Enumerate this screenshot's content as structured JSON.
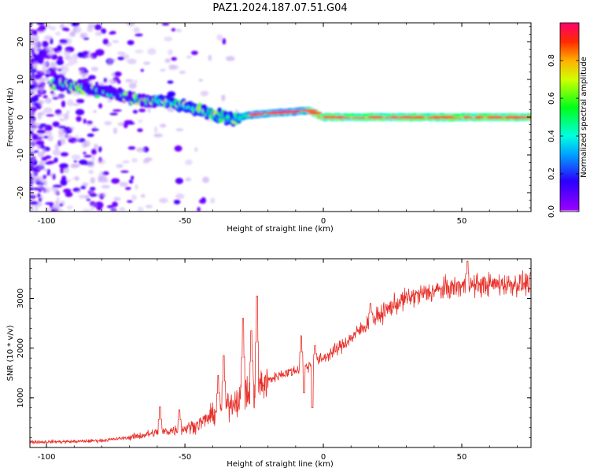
{
  "title": "PAZ1.2024.187.07.51.G04",
  "chart_data": [
    {
      "type": "heatmap",
      "xlabel": "Height of straight line (km)",
      "ylabel": "Frequency (Hz)",
      "xlim": [
        -106,
        75
      ],
      "ylim": [
        -25,
        25
      ],
      "xticks": [
        -100,
        -50,
        0,
        50
      ],
      "yticks": [
        -20,
        -10,
        0,
        10,
        20
      ],
      "colorbar": {
        "label": "Normalized spectral amplitude",
        "range": [
          0,
          1
        ],
        "ticks": [
          0.0,
          0.2,
          0.4,
          0.6,
          0.8
        ],
        "colormap": "gist_rainbow_r",
        "zero_color": "#ffffff"
      },
      "ridge": [
        {
          "x": -95,
          "y": 9
        },
        {
          "x": -85,
          "y": 7.5
        },
        {
          "x": -75,
          "y": 6
        },
        {
          "x": -65,
          "y": 4.5
        },
        {
          "x": -55,
          "y": 4
        },
        {
          "x": -48,
          "y": 2.5
        },
        {
          "x": -40,
          "y": 1
        },
        {
          "x": -33,
          "y": -1
        },
        {
          "x": -28,
          "y": 0.5
        },
        {
          "x": -20,
          "y": 1
        },
        {
          "x": -10,
          "y": 1.5
        },
        {
          "x": -5,
          "y": 1.8
        },
        {
          "x": 0,
          "y": 0
        },
        {
          "x": 10,
          "y": 0
        },
        {
          "x": 30,
          "y": 0
        },
        {
          "x": 50,
          "y": 0
        },
        {
          "x": 75,
          "y": 0
        }
      ]
    },
    {
      "type": "line",
      "xlabel": "Height of straight line (km)",
      "ylabel": "SNR (10 * v/v)",
      "xlim": [
        -106,
        75
      ],
      "ylim": [
        0,
        3800
      ],
      "xticks": [
        -100,
        -50,
        0,
        50
      ],
      "yticks": [
        1000,
        2000,
        3000
      ],
      "color": "#e8302a",
      "trend": [
        {
          "x": -106,
          "y": 110
        },
        {
          "x": -90,
          "y": 120
        },
        {
          "x": -80,
          "y": 140
        },
        {
          "x": -70,
          "y": 200
        },
        {
          "x": -60,
          "y": 300
        },
        {
          "x": -50,
          "y": 380
        },
        {
          "x": -45,
          "y": 470
        },
        {
          "x": -40,
          "y": 650
        },
        {
          "x": -35,
          "y": 850
        },
        {
          "x": -30,
          "y": 1000
        },
        {
          "x": -25,
          "y": 1150
        },
        {
          "x": -20,
          "y": 1350
        },
        {
          "x": -15,
          "y": 1480
        },
        {
          "x": -10,
          "y": 1550
        },
        {
          "x": -5,
          "y": 1650
        },
        {
          "x": 0,
          "y": 1800
        },
        {
          "x": 5,
          "y": 1980
        },
        {
          "x": 10,
          "y": 2200
        },
        {
          "x": 15,
          "y": 2450
        },
        {
          "x": 20,
          "y": 2650
        },
        {
          "x": 25,
          "y": 2850
        },
        {
          "x": 30,
          "y": 3000
        },
        {
          "x": 40,
          "y": 3150
        },
        {
          "x": 50,
          "y": 3250
        },
        {
          "x": 60,
          "y": 3280
        },
        {
          "x": 75,
          "y": 3300
        }
      ],
      "spikes": [
        {
          "x": -59,
          "y": 820
        },
        {
          "x": -52,
          "y": 760
        },
        {
          "x": -38,
          "y": 1450
        },
        {
          "x": -36,
          "y": 1850
        },
        {
          "x": -29,
          "y": 2600
        },
        {
          "x": -24,
          "y": 3050
        },
        {
          "x": -26,
          "y": 2350
        },
        {
          "x": -8,
          "y": 2250
        },
        {
          "x": -3,
          "y": 2050
        },
        {
          "x": 17,
          "y": 2900
        },
        {
          "x": 52,
          "y": 3750
        }
      ],
      "dips": [
        {
          "x": -4,
          "y": 800
        },
        {
          "x": -7,
          "y": 1100
        }
      ]
    }
  ]
}
